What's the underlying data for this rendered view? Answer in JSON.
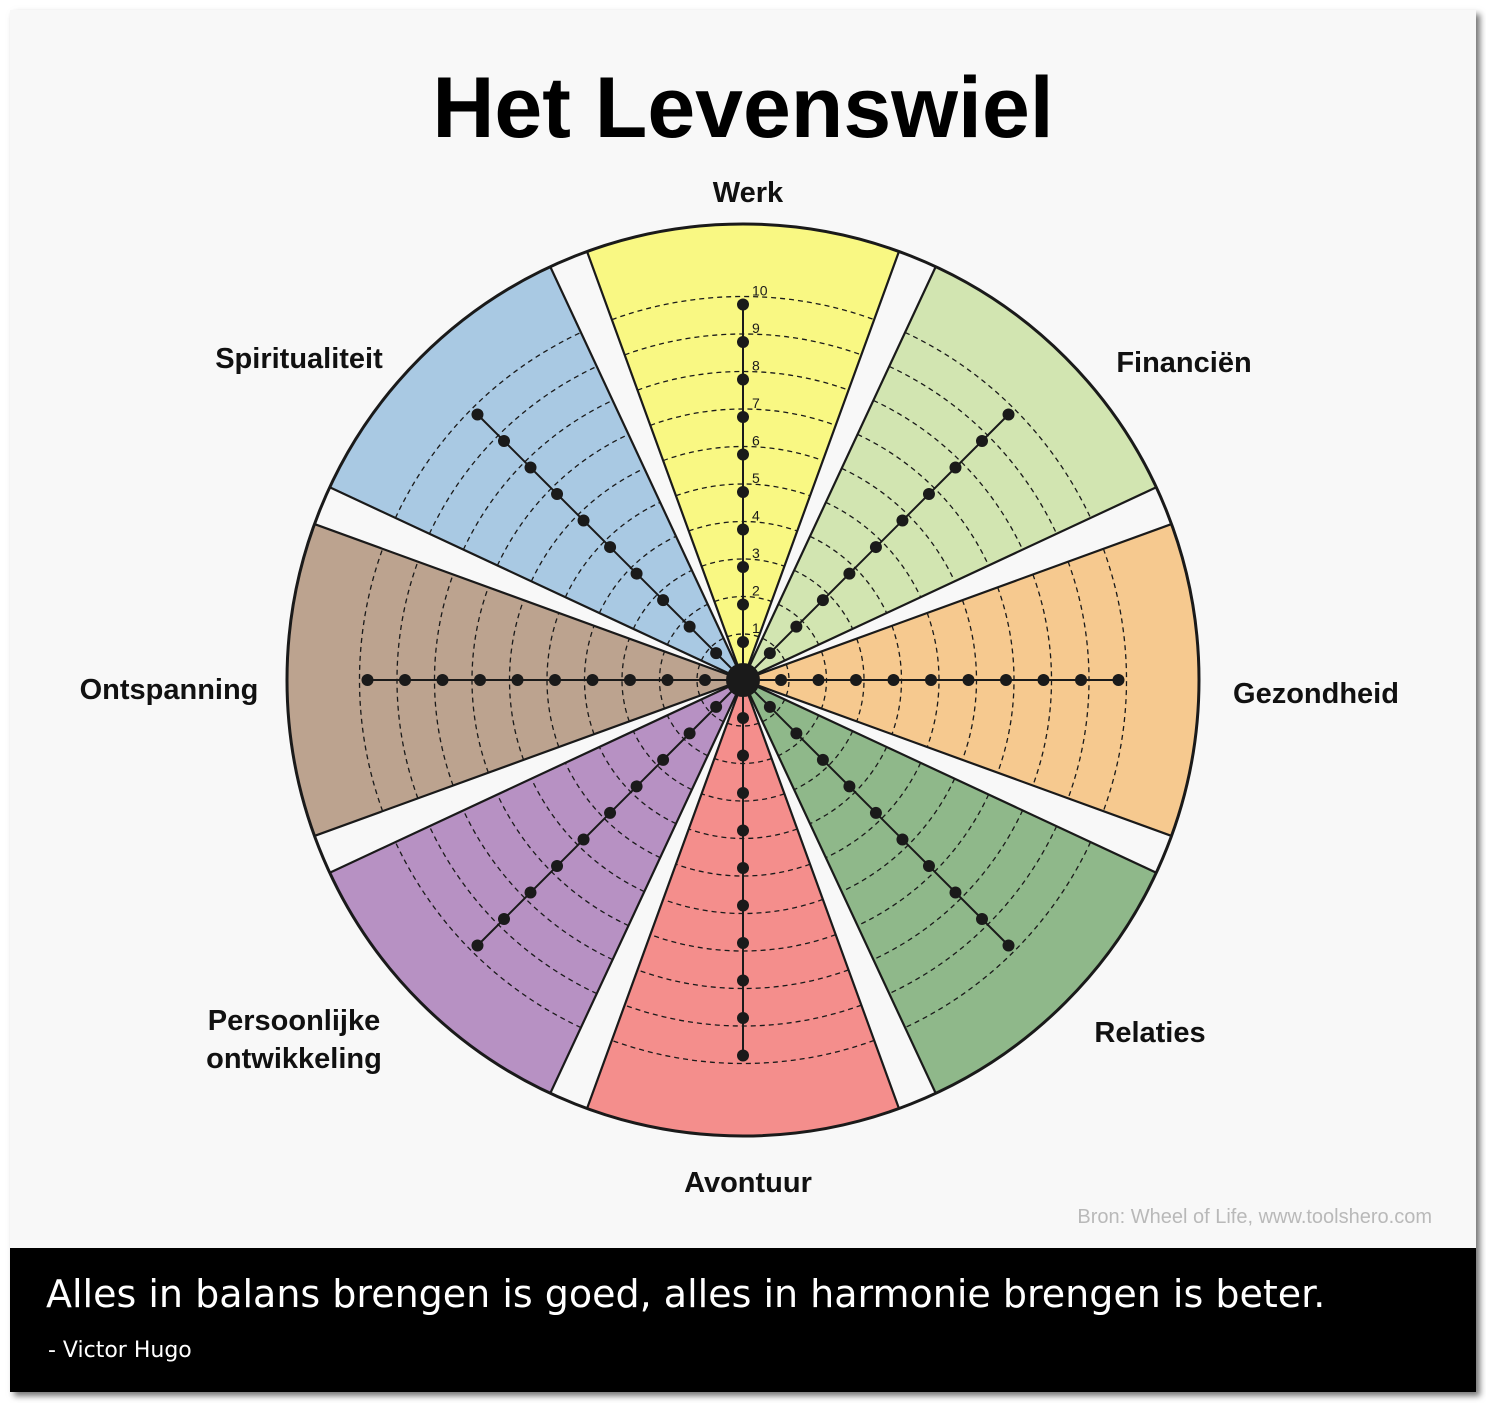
{
  "title": "Het Levenswiel",
  "scale": {
    "min": 1,
    "max": 10,
    "labels": [
      "1",
      "2",
      "3",
      "4",
      "5",
      "6",
      "7",
      "8",
      "9",
      "10"
    ]
  },
  "segments": [
    {
      "label": "Werk",
      "color": "#f9f883"
    },
    {
      "label": "Financiën",
      "color": "#d2e5b1"
    },
    {
      "label": "Gezondheid",
      "color": "#f6c98f"
    },
    {
      "label": "Relaties",
      "color": "#8fb88a"
    },
    {
      "label": "Avontuur",
      "color": "#f48e8c"
    },
    {
      "label": "Persoonlijke ontwikkeling",
      "color": "#b791c3"
    },
    {
      "label": "Ontspanning",
      "color": "#bca38f"
    },
    {
      "label": "Spiritualiteit",
      "color": "#a9c9e3"
    }
  ],
  "source": "Bron: Wheel of Life, www.toolshero.com",
  "quote": {
    "text": "Alles in balans brengen is goed, alles in harmonie brengen is beter.",
    "author": "- Victor Hugo"
  }
}
